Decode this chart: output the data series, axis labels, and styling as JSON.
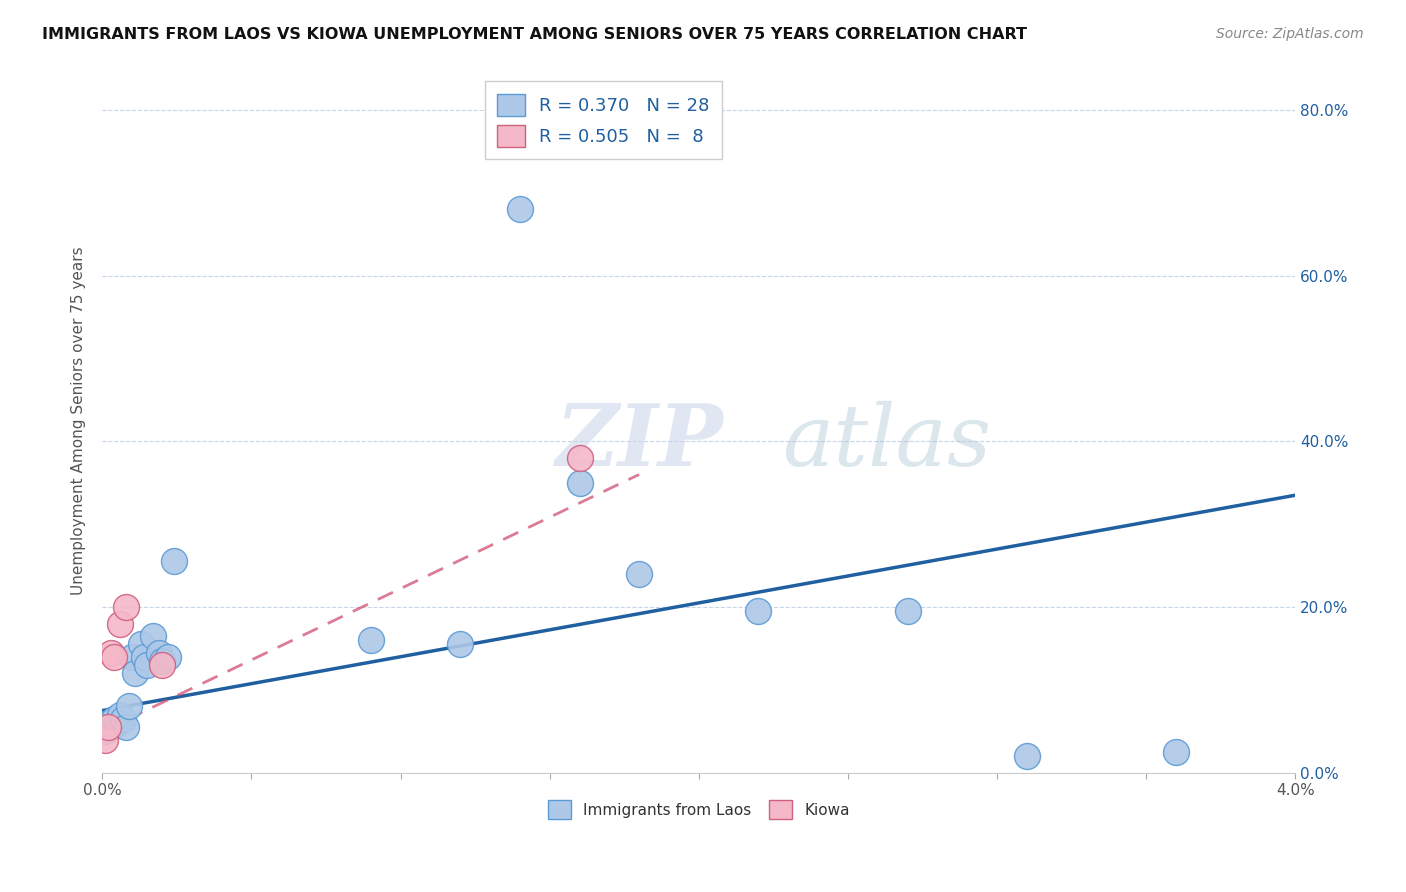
{
  "title": "IMMIGRANTS FROM LAOS VS KIOWA UNEMPLOYMENT AMONG SENIORS OVER 75 YEARS CORRELATION CHART",
  "source": "Source: ZipAtlas.com",
  "ylabel": "Unemployment Among Seniors over 75 years",
  "xlim": [
    0.0,
    0.04
  ],
  "ylim": [
    0.0,
    0.85
  ],
  "xticks": [
    0.0,
    0.005,
    0.01,
    0.015,
    0.02,
    0.025,
    0.03,
    0.035,
    0.04
  ],
  "yticks": [
    0.0,
    0.2,
    0.4,
    0.6,
    0.8
  ],
  "ytick_labels_right": [
    "0.0%",
    "20.0%",
    "40.0%",
    "60.0%",
    "80.0%"
  ],
  "xtick_labels": [
    "0.0%",
    "",
    "",
    "",
    "",
    "",
    "",
    "",
    "4.0%"
  ],
  "blue_color": "#aec8e8",
  "blue_edge": "#5b9bd5",
  "pink_color": "#f4b8c8",
  "pink_edge": "#d06080",
  "blue_line_color": "#2060a0",
  "pink_line_color": "#d05070",
  "legend_R_blue": "R = 0.370",
  "legend_N_blue": "N = 28",
  "legend_R_pink": "R = 0.505",
  "legend_N_pink": "N =  8",
  "watermark_zip": "ZIP",
  "watermark_atlas": "atlas",
  "blue_points_x": [
    0.0001,
    0.0002,
    0.0003,
    0.0004,
    0.0005,
    0.0006,
    0.0007,
    0.0008,
    0.0009,
    0.001,
    0.0011,
    0.0013,
    0.0014,
    0.0015,
    0.0017,
    0.0019,
    0.002,
    0.0022,
    0.0024,
    0.009,
    0.012,
    0.014,
    0.016,
    0.018,
    0.022,
    0.027,
    0.031,
    0.036
  ],
  "blue_points_y": [
    0.05,
    0.06,
    0.055,
    0.065,
    0.06,
    0.07,
    0.065,
    0.055,
    0.08,
    0.14,
    0.12,
    0.155,
    0.14,
    0.13,
    0.165,
    0.145,
    0.135,
    0.14,
    0.255,
    0.16,
    0.155,
    0.68,
    0.35,
    0.24,
    0.195,
    0.195,
    0.02,
    0.025
  ],
  "pink_points_x": [
    0.0001,
    0.0002,
    0.0003,
    0.0004,
    0.0006,
    0.0008,
    0.002,
    0.016
  ],
  "pink_points_y": [
    0.04,
    0.055,
    0.145,
    0.14,
    0.18,
    0.2,
    0.13,
    0.38
  ],
  "blue_trend_x": [
    0.0,
    0.04
  ],
  "blue_trend_y": [
    0.075,
    0.335
  ],
  "pink_trend_x": [
    0.0,
    0.018
  ],
  "pink_trend_y": [
    0.05,
    0.36
  ]
}
